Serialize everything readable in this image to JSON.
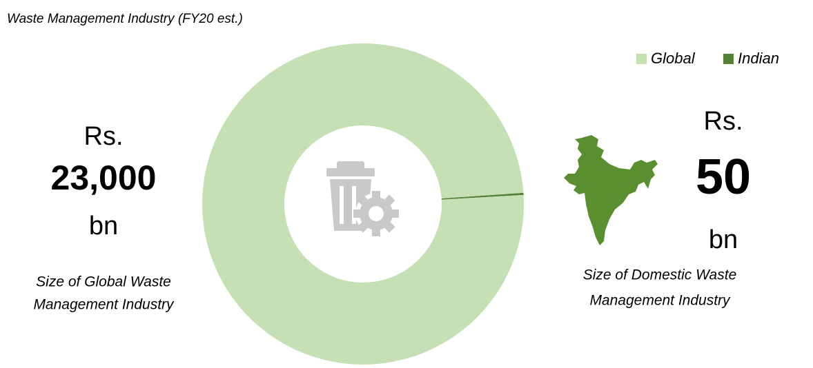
{
  "chart_data": {
    "type": "donut",
    "title": "Waste Management Industry (FY20 est.)",
    "categories": [
      "Global",
      "Indian"
    ],
    "values": [
      23000,
      50
    ],
    "value_labels": [
      "23,000",
      "50"
    ],
    "colors": [
      "#c5e0b4",
      "#548235"
    ],
    "label_colors": [
      "#a9d18e",
      "#548235"
    ],
    "legend": "top-right",
    "annotations": [
      {
        "prefix": "Rs.",
        "suffix": "bn",
        "caption": [
          "Size of Global Waste",
          "Management Industry"
        ]
      },
      {
        "prefix": "Rs.",
        "suffix": "bn",
        "caption": [
          "Size of Domestic Waste",
          "Management Industry"
        ]
      }
    ]
  }
}
